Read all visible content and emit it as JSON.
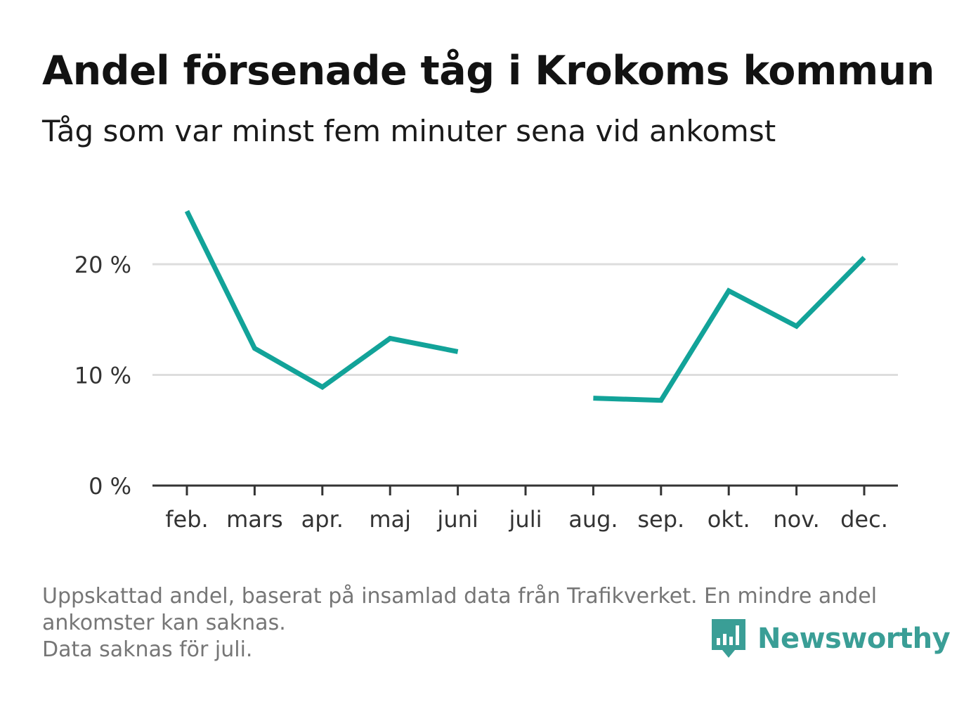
{
  "header": {
    "title": "Andel försenade tåg i Krokoms kommun",
    "subtitle": "Tåg som var minst fem minuter sena vid ankomst"
  },
  "chart_data": {
    "type": "line",
    "title": "Andel försenade tåg i Krokoms kommun",
    "subtitle": "Tåg som var minst fem minuter sena vid ankomst",
    "xlabel": "",
    "ylabel": "",
    "categories": [
      "feb.",
      "mars",
      "apr.",
      "maj",
      "juni",
      "juli",
      "aug.",
      "sep.",
      "okt.",
      "nov.",
      "dec."
    ],
    "series": [
      {
        "values": [
          24.8,
          12.4,
          8.9,
          13.3,
          12.1,
          null,
          7.9,
          7.7,
          17.6,
          14.4,
          20.6
        ],
        "color": "#12a399"
      }
    ],
    "ylim": [
      0,
      25
    ],
    "yticks": [
      0,
      10,
      20
    ],
    "ytick_labels": [
      "0 %",
      "10 %",
      "20 %"
    ],
    "grid": true,
    "colors": {
      "line": "#12a399",
      "grid": "#dddddd",
      "axis": "#333333"
    }
  },
  "footnote": {
    "line1": "Uppskattad andel, baserat på insamlad data från Trafikverket. En mindre andel",
    "line2": "ankomster kan saknas.",
    "line3": "Data saknas för juli."
  },
  "logo": {
    "text": "Newsworthy",
    "icon": "newsworthy-chart-bubble-icon",
    "color": "#3a9e96"
  }
}
